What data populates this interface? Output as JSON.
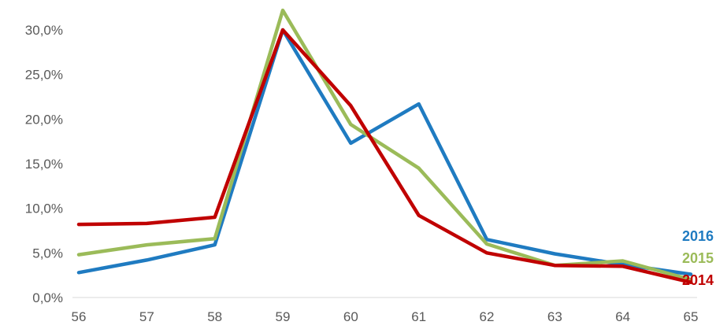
{
  "chart_data": {
    "type": "line",
    "categories": [
      "56",
      "57",
      "58",
      "59",
      "60",
      "61",
      "62",
      "63",
      "64",
      "65"
    ],
    "yticks": [
      "0,0%",
      "5,0%",
      "10,0%",
      "15,0%",
      "20,0%",
      "25,0%",
      "30,0%"
    ],
    "ylim": [
      0,
      30
    ],
    "grid": false,
    "legend_placement": "right",
    "series": [
      {
        "name": "2016",
        "color": "#1f7bc1",
        "values": [
          2.8,
          4.2,
          5.9,
          30.0,
          17.3,
          21.7,
          6.5,
          4.9,
          3.7,
          2.6
        ]
      },
      {
        "name": "2015",
        "color": "#9bbb59",
        "values": [
          4.8,
          5.9,
          6.6,
          32.2,
          19.4,
          14.5,
          6.0,
          3.6,
          4.1,
          2.0
        ]
      },
      {
        "name": "2014",
        "color": "#c00000",
        "values": [
          8.2,
          8.3,
          9.0,
          30.0,
          21.5,
          9.2,
          5.0,
          3.6,
          3.5,
          1.7
        ]
      }
    ]
  }
}
